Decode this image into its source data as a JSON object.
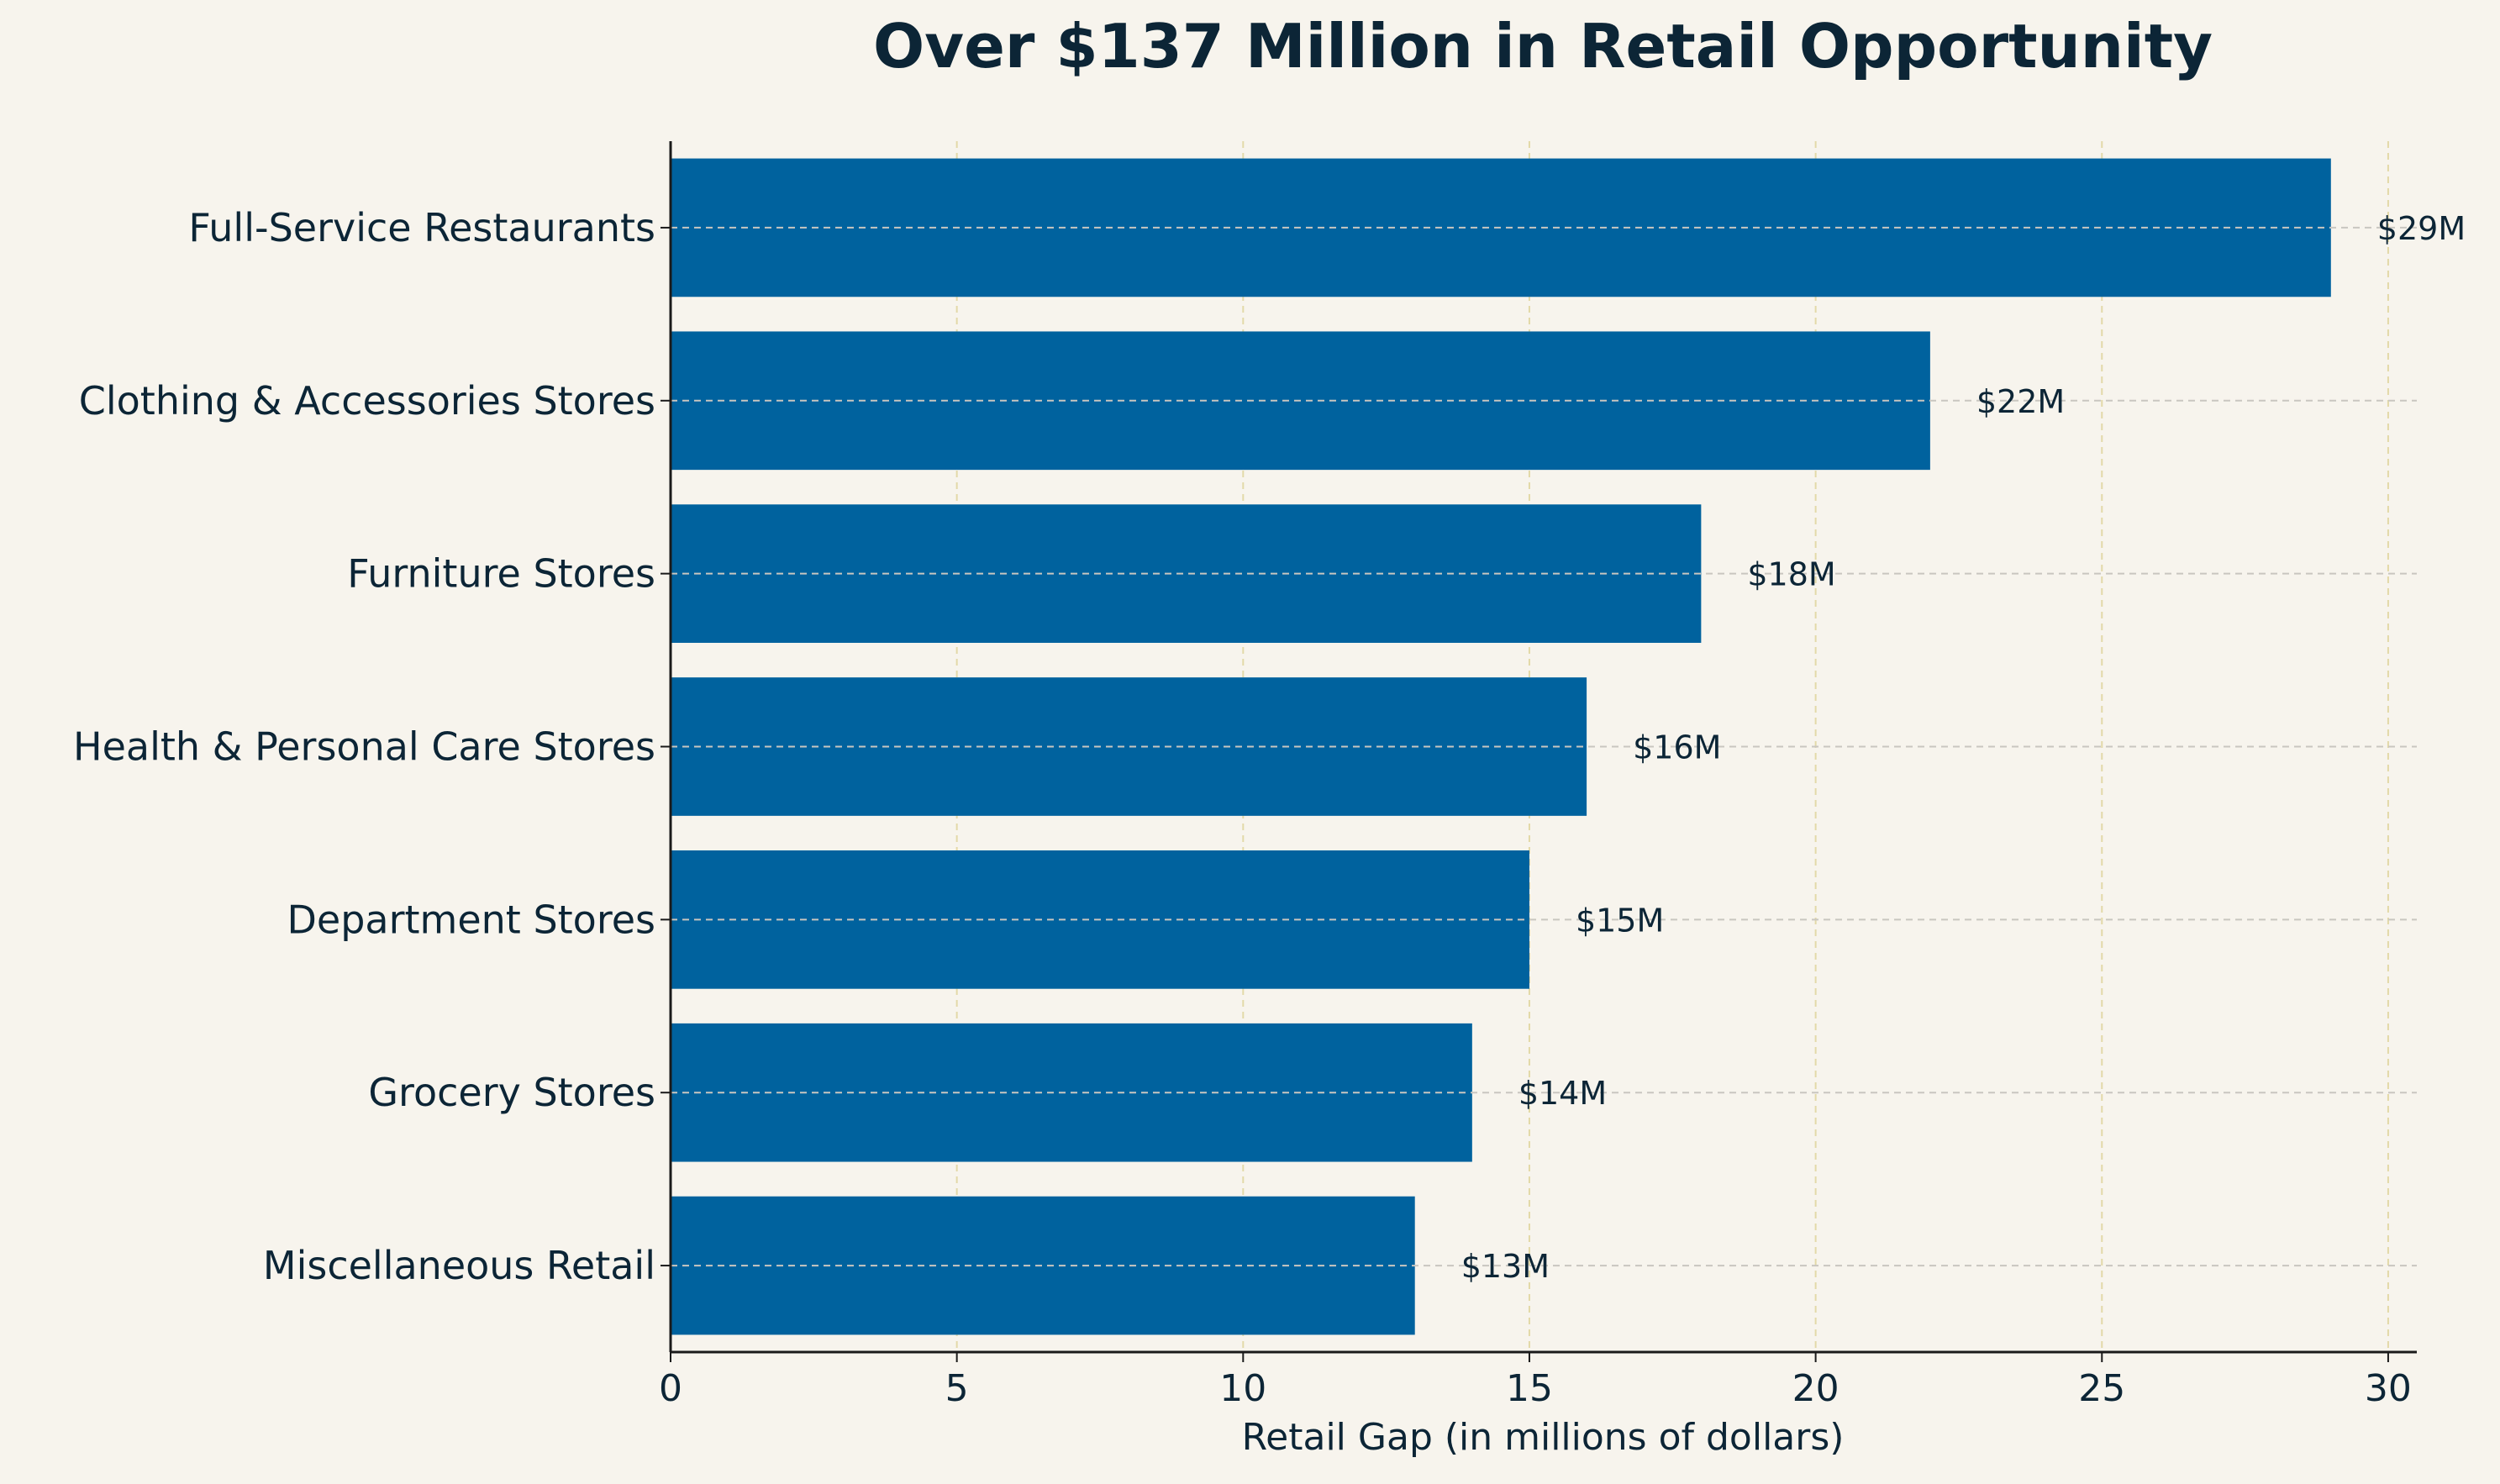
{
  "colors": {
    "background": "#f7f4ed",
    "bar": "#00629e",
    "text": "#0c2536",
    "axis": "#1a1a1a",
    "grid_x": "#e3d9a8",
    "grid_y": "#c9c6c0"
  },
  "chart_data": {
    "type": "bar",
    "orientation": "horizontal",
    "title": "Over $137 Million in Retail Opportunity",
    "xlabel": "Retail Gap (in millions of dollars)",
    "ylabel": "",
    "xlim": [
      0,
      30.5
    ],
    "xticks": [
      0,
      5,
      10,
      15,
      20,
      25,
      30
    ],
    "xtick_labels": [
      "0",
      "5",
      "10",
      "15",
      "20",
      "25",
      "30"
    ],
    "grid": true,
    "categories": [
      "Full-Service Restaurants",
      "Clothing & Accessories Stores",
      "Furniture Stores",
      "Health & Personal Care Stores",
      "Department Stores",
      "Grocery Stores",
      "Miscellaneous Retail"
    ],
    "values": [
      29,
      22,
      18,
      16,
      15,
      14,
      13
    ],
    "value_labels": [
      "$29M",
      "$22M",
      "$18M",
      "$16M",
      "$15M",
      "$14M",
      "$13M"
    ]
  }
}
